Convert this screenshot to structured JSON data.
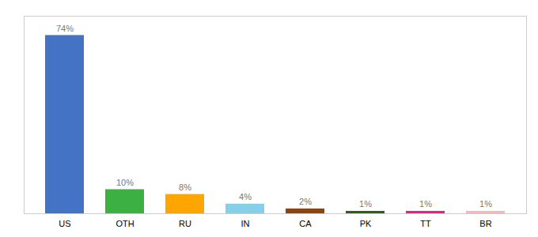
{
  "chart_data": {
    "type": "bar",
    "categories": [
      "US",
      "OTH",
      "RU",
      "IN",
      "CA",
      "PK",
      "TT",
      "BR"
    ],
    "values": [
      74,
      10,
      8,
      4,
      2,
      1,
      1,
      1
    ],
    "value_labels": [
      "74%",
      "10%",
      "8%",
      "4%",
      "2%",
      "1%",
      "1%",
      "1%"
    ],
    "colors": [
      "#4472c4",
      "#3cb043",
      "#ffa500",
      "#87ceeb",
      "#8b4513",
      "#2e5e1e",
      "#e91e8c",
      "#f4b8b8"
    ],
    "ylim": [
      0,
      82
    ],
    "data_labels": true,
    "tick_labels": "x"
  }
}
